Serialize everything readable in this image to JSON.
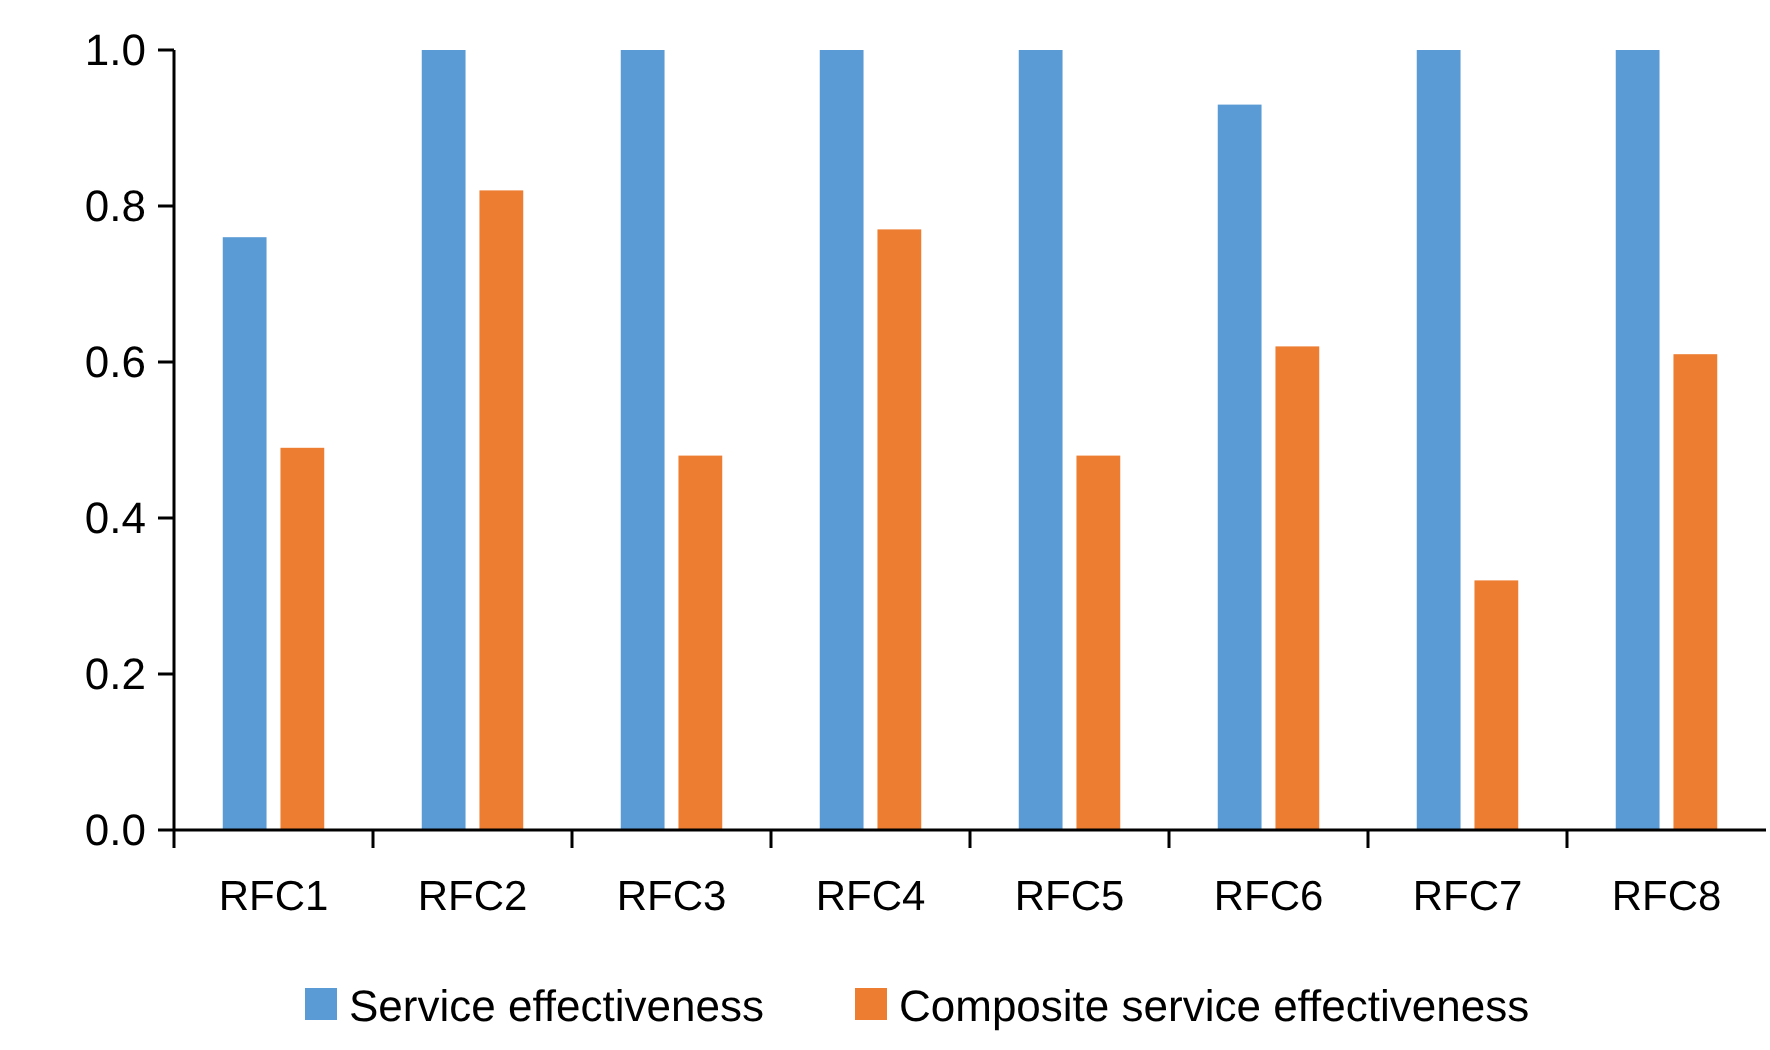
{
  "chart_data": {
    "type": "bar",
    "categories": [
      "RFC1",
      "RFC2",
      "RFC3",
      "RFC4",
      "RFC5",
      "RFC6",
      "RFC7",
      "RFC8"
    ],
    "series": [
      {
        "name": "Service effectiveness",
        "color": "#5b9bd5",
        "values": [
          0.76,
          1.0,
          1.0,
          1.0,
          1.0,
          0.93,
          1.0,
          1.0
        ]
      },
      {
        "name": "Composite service effectiveness",
        "color": "#ed7d31",
        "values": [
          0.49,
          0.82,
          0.48,
          0.77,
          0.48,
          0.62,
          0.32,
          0.61
        ]
      }
    ],
    "ylim": [
      0,
      1
    ],
    "yticks": [
      {
        "value": 0,
        "label": "0.0"
      },
      0.2,
      0.4,
      0.6,
      0.8,
      {
        "value": 1,
        "label": "1.0"
      }
    ],
    "legend": "bottom",
    "grid": false
  }
}
